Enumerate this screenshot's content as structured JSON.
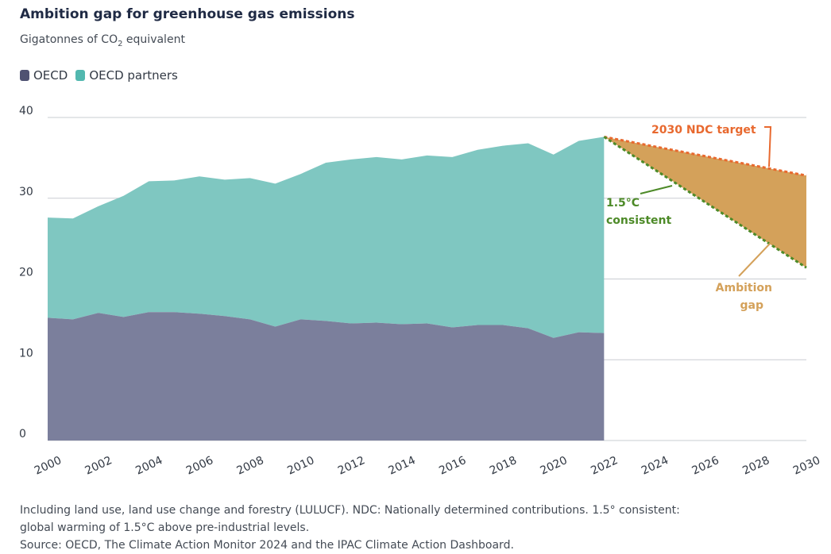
{
  "title": "Ambition gap for greenhouse gas emissions",
  "subtitle_prefix": "Gigatonnes of CO",
  "subtitle_sub": "2",
  "subtitle_suffix": " equivalent",
  "legend": [
    {
      "label": "OECD",
      "color": "#6e7293"
    },
    {
      "label": "OECD partners",
      "color": "#5fbdb5"
    }
  ],
  "note_line1": "Including land use, land use change and forestry (LULUCF). NDC: Nationally determined contributions. 1.5° consistent:",
  "note_line2": "global warming of 1.5°C above pre-industrial levels.",
  "source": "Source: OECD, The Climate Action Monitor 2024 and the IPAC Climate Action Dashboard.",
  "chart_data": {
    "type": "area",
    "title": "Ambition gap for greenhouse gas emissions",
    "ylabel": "Gigatonnes of CO2 equivalent",
    "xlim": [
      2000,
      2030
    ],
    "ylim": [
      0,
      40
    ],
    "yticks": [
      0,
      10,
      20,
      30,
      40
    ],
    "xticks": [
      2000,
      2002,
      2004,
      2006,
      2008,
      2010,
      2012,
      2014,
      2016,
      2018,
      2020,
      2022,
      2024,
      2026,
      2028,
      2030
    ],
    "grid": true,
    "legend_position": "top-left",
    "x": [
      2000,
      2001,
      2002,
      2003,
      2004,
      2005,
      2006,
      2007,
      2008,
      2009,
      2010,
      2011,
      2012,
      2013,
      2014,
      2015,
      2016,
      2017,
      2018,
      2019,
      2020,
      2021,
      2022
    ],
    "series": [
      {
        "name": "OECD",
        "color": "#7b7f9c",
        "values": [
          15.2,
          15.0,
          15.8,
          15.3,
          15.9,
          15.9,
          15.7,
          15.4,
          15.0,
          14.1,
          15.0,
          14.8,
          14.5,
          14.6,
          14.4,
          14.5,
          14.0,
          14.3,
          14.3,
          13.9,
          12.7,
          13.4,
          13.3
        ]
      },
      {
        "name": "OECD partners",
        "color": "#7fc7c1",
        "values": [
          12.4,
          12.5,
          13.2,
          15.0,
          16.2,
          16.3,
          17.0,
          16.9,
          17.5,
          17.7,
          18.0,
          19.6,
          20.3,
          20.5,
          20.4,
          20.8,
          21.1,
          21.7,
          22.2,
          22.9,
          22.7,
          23.7,
          24.3
        ]
      }
    ],
    "projections": [
      {
        "name": "2030 NDC target",
        "color": "#e8692f",
        "x": [
          2022,
          2030
        ],
        "values": [
          37.6,
          32.8
        ]
      },
      {
        "name": "1.5°C consistent",
        "color": "#4d8a28",
        "x": [
          2022,
          2030
        ],
        "values": [
          37.6,
          21.4
        ]
      }
    ],
    "gap_fill": "#d4a15a",
    "annotations": {
      "ndc": "2030 NDC target",
      "c15_line1": "1.5°C",
      "c15_line2": "consistent",
      "gap_line1": "Ambition",
      "gap_line2": "gap"
    }
  }
}
